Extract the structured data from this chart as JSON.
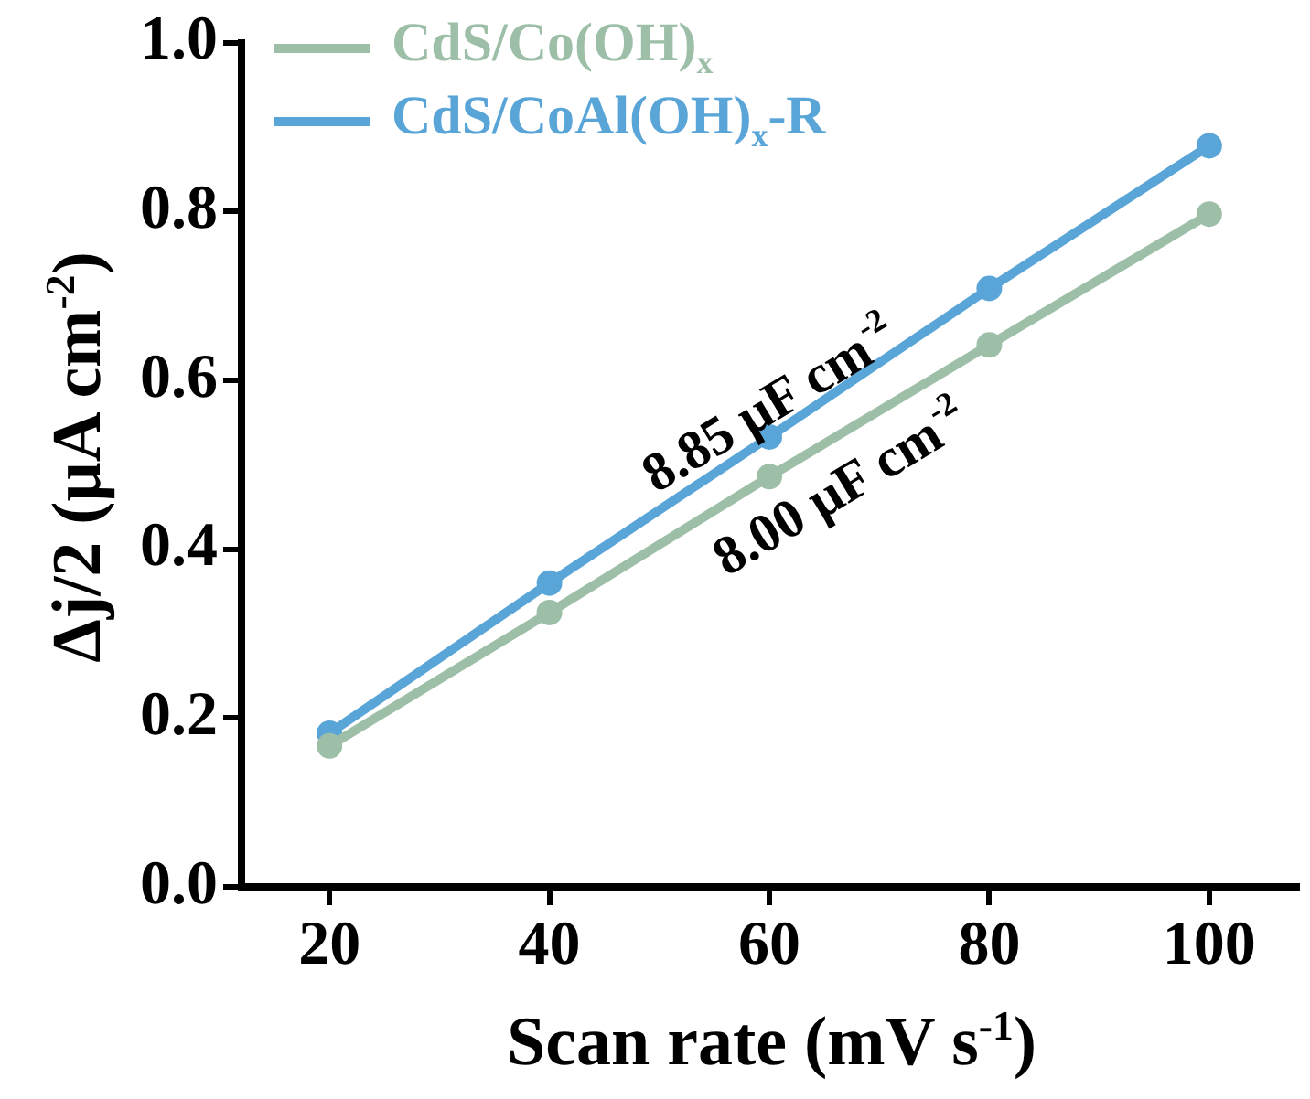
{
  "chart_data": {
    "type": "line",
    "xlabel": "Scan rate (mV s$^{-1}$)",
    "ylabel": "Δj/2 (μA cm$^{-2}$)",
    "x": [
      20,
      40,
      60,
      80,
      100
    ],
    "series": [
      {
        "name": "CdS/Co(OH)$_{x}$",
        "color": "#9dbfa8",
        "values": [
          0.167,
          0.325,
          0.486,
          0.642,
          0.797
        ]
      },
      {
        "name": "CdS/CoAl(OH)$_{x}$-R",
        "color": "#5aa5d8",
        "values": [
          0.182,
          0.36,
          0.533,
          0.709,
          0.878
        ]
      }
    ],
    "xlim": [
      12,
      108
    ],
    "xticks": [
      20,
      40,
      60,
      80,
      100
    ],
    "ylim": [
      0,
      1
    ],
    "yticks": [
      {
        "value": 0,
        "label": "0.0"
      },
      {
        "value": 0.2,
        "label": "0.2"
      },
      {
        "value": 0.4,
        "label": "0.4"
      },
      {
        "value": 0.6,
        "label": "0.6"
      },
      {
        "value": 0.8,
        "label": "0.8"
      },
      {
        "value": 1,
        "label": "1.0"
      }
    ],
    "annotations": [
      "8.85 μF cm$^{-2}$",
      "8.00 μF cm$^{-2}$"
    ],
    "grid": false,
    "legend": "top left",
    "marker": "circle",
    "line_style": "solid"
  }
}
